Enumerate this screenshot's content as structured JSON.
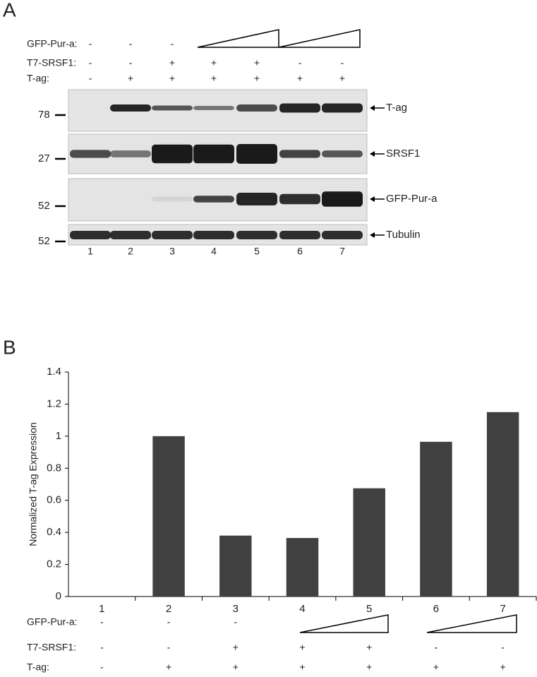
{
  "panel_a": {
    "label": "A",
    "rows": [
      {
        "label": "GFP-Pur-a:",
        "signs": [
          "-",
          "-",
          "-"
        ]
      },
      {
        "label": "T7-SRSF1:",
        "signs": [
          "-",
          "-",
          "+",
          "+",
          "+",
          "-",
          "-"
        ]
      },
      {
        "label": "T-ag:",
        "signs": [
          "-",
          "+",
          "+",
          "+",
          "+",
          "+",
          "+"
        ]
      }
    ],
    "markers": [
      "78",
      "27",
      "52",
      "52"
    ],
    "proteins": [
      "T-ag",
      "SRSF1",
      "GFP-Pur-a",
      "Tubulin"
    ],
    "lanes": [
      "1",
      "2",
      "3",
      "4",
      "5",
      "6",
      "7"
    ]
  },
  "chart_data": {
    "type": "bar",
    "label": "B",
    "ylabel": "Normalized T-ag  Expression",
    "categories": [
      "1",
      "2",
      "3",
      "4",
      "5",
      "6",
      "7"
    ],
    "values": [
      0,
      1.0,
      0.38,
      0.365,
      0.675,
      0.965,
      1.15
    ],
    "color": "#404040",
    "ylim": [
      0,
      1.4
    ],
    "yticks": [
      0,
      0.2,
      0.4,
      0.6,
      0.8,
      1,
      1.2,
      1.4
    ],
    "treatments": [
      {
        "label": "GFP-Pur-a:",
        "signs": [
          "-",
          "-",
          "-"
        ]
      },
      {
        "label": "T7-SRSF1:",
        "signs": [
          "-",
          "-",
          "+",
          "+",
          "+",
          "-",
          "-"
        ]
      },
      {
        "label": "T-ag:",
        "signs": [
          "-",
          "+",
          "+",
          "+",
          "+",
          "+",
          "+"
        ]
      }
    ]
  }
}
